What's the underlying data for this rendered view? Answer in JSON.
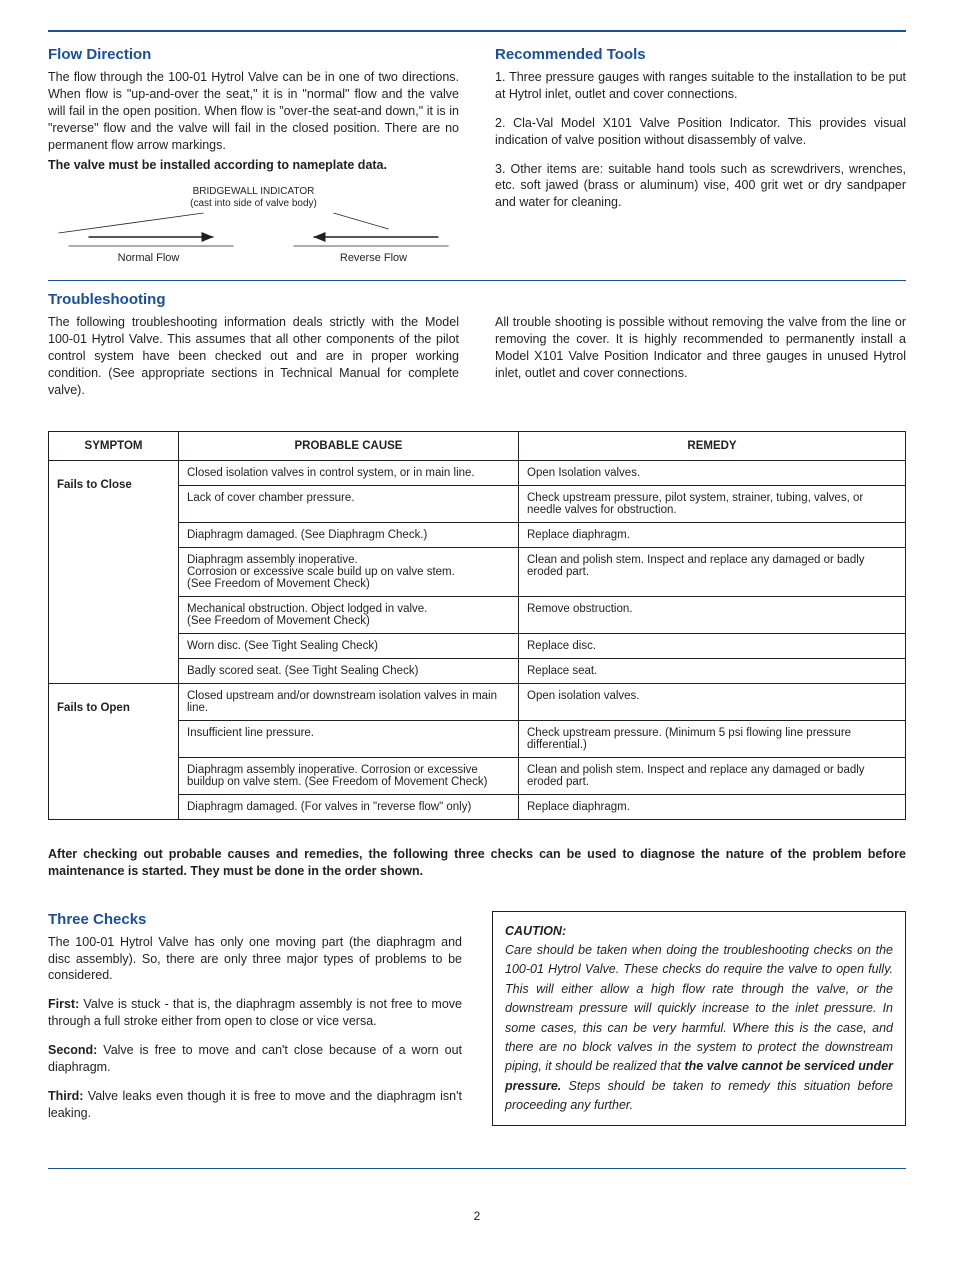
{
  "colors": {
    "heading": "#1a4f9c",
    "rule": "#1a4f9c",
    "text": "#231f20",
    "table_border": "#231f20",
    "page_background": "#ffffff"
  },
  "typography": {
    "heading_fontsize": 15,
    "body_fontsize": 12.5,
    "table_fontsize": 11.5,
    "diagram_caption_fontsize": 10,
    "font_family": "Arial, Helvetica, sans-serif"
  },
  "sections": {
    "flow_direction": {
      "title": "Flow Direction",
      "body": "The flow through the 100-01 Hytrol Valve can be in one of two directions. When flow is \"up-and-over the seat,\" it is in \"normal\" flow and the valve will fail in the open position. When flow is \"over-the seat-and down,\" it is in \"reverse\" flow and the valve will fail in the closed position. There are no permanent flow arrow markings.",
      "callout": "The valve must be installed according to nameplate data."
    },
    "flow_diagram": {
      "caption_line1": "BRIDGEWALL INDICATOR",
      "caption_line2": "(cast into side of valve body)",
      "normal_label": "Normal Flow",
      "reverse_label": "Reverse Flow"
    },
    "recommended_tools": {
      "title": "Recommended Tools",
      "items": [
        "1.  Three pressure gauges with ranges suitable to the installation to be put at Hytrol inlet, outlet and cover connections.",
        "2.  Cla-Val Model X101 Valve Position Indicator.  This provides visual indication of valve position without disassembly of valve.",
        "3.  Other items are:  suitable hand tools such as screwdrivers, wrenches, etc. soft jawed (brass or aluminum) vise, 400 grit wet or dry sandpaper and water for cleaning."
      ]
    },
    "troubleshooting": {
      "title": "Troubleshooting",
      "left": "The following troubleshooting information deals strictly with the Model 100-01 Hytrol Valve. This assumes that all other  components of the pilot control system have been checked out and are in proper working condition. (See appropriate sections in Technical Manual for complete valve).",
      "right": "All trouble shooting is possible without removing the valve from the line or removing the cover.  It is highly recommended to permanently install a Model X101 Valve Position Indicator and three gauges in unused Hytrol inlet, outlet and cover connections."
    }
  },
  "table": {
    "columns": [
      "SYMPTOM",
      "PROBABLE CAUSE",
      "REMEDY"
    ],
    "groups": [
      {
        "symptom": "Fails to Close",
        "rows": [
          {
            "cause": "Closed isolation valves in control system, or in main line.",
            "remedy": "Open Isolation valves."
          },
          {
            "cause": "Lack of cover chamber pressure.",
            "remedy": "Check upstream pressure, pilot system, strainer, tubing, valves, or needle valves for obstruction."
          },
          {
            "cause": "Diaphragm damaged.  (See Diaphragm Check.)",
            "remedy": "Replace diaphragm."
          },
          {
            "cause": "Diaphragm assembly inoperative.\nCorrosion or excessive scale build up on valve stem.\n(See Freedom of Movement Check)",
            "remedy": "Clean and polish stem. Inspect and replace any damaged or badly eroded part."
          },
          {
            "cause": "Mechanical obstruction. Object lodged in valve.\n(See Freedom of Movement Check)",
            "remedy": "Remove obstruction."
          },
          {
            "cause": "Worn disc.  (See Tight Sealing Check)",
            "remedy": "Replace disc."
          },
          {
            "cause": "Badly scored seat.  (See Tight Sealing Check)",
            "remedy": "Replace seat."
          }
        ]
      },
      {
        "symptom": "Fails to Open",
        "rows": [
          {
            "cause": "Closed upstream and/or downstream isolation valves in main line.",
            "remedy": "Open isolation valves."
          },
          {
            "cause": "Insufficient  line pressure.",
            "remedy": "Check upstream pressure. (Minimum 5 psi flowing line pressure differential.)"
          },
          {
            "cause": "Diaphragm assembly inoperative.  Corrosion or excessive buildup on valve stem.  (See Freedom of Movement Check)",
            "remedy": "Clean and polish stem. Inspect and replace any damaged or badly eroded part."
          },
          {
            "cause": "Diaphragm damaged.  (For valves in \"reverse flow\" only)",
            "remedy": "Replace diaphragm."
          }
        ]
      }
    ]
  },
  "after_table": "After checking out probable causes and remedies, the following three checks can be used to diagnose the nature of the problem before maintenance is started. They must be done in the order shown.",
  "three_checks": {
    "title": "Three Checks",
    "intro": "The 100-01 Hytrol Valve has only one moving part (the diaphragm and disc assembly). So, there are only three major types of problems to be considered.",
    "first_label": "First:",
    "first": " Valve is stuck - that is, the diaphragm assembly is not free to move through a full stroke either from open to close or vice versa.",
    "second_label": "Second:",
    "second": " Valve is free to move and can't close because of a worn out diaphragm.",
    "third_label": "Third:",
    "third": " Valve leaks even though it is free to move and the diaphragm isn't leaking."
  },
  "caution": {
    "label": "CAUTION",
    "body_pre": "Care should be taken when doing the troubleshooting checks on the 100-01 Hytrol Valve. These checks do require the valve to open fully. This will either allow a high flow rate through the valve, or the downstream  pressure will quickly increase to the inlet pressure. In some cases, this can be very harmful. Where this is the case, and there are no block valves in the system to protect the downstream piping, it should be realized that ",
    "body_bold": "the valve cannot be serviced under pressure.",
    "body_post": " Steps should be taken to remedy this situation before proceeding any further."
  },
  "page_number": "2"
}
